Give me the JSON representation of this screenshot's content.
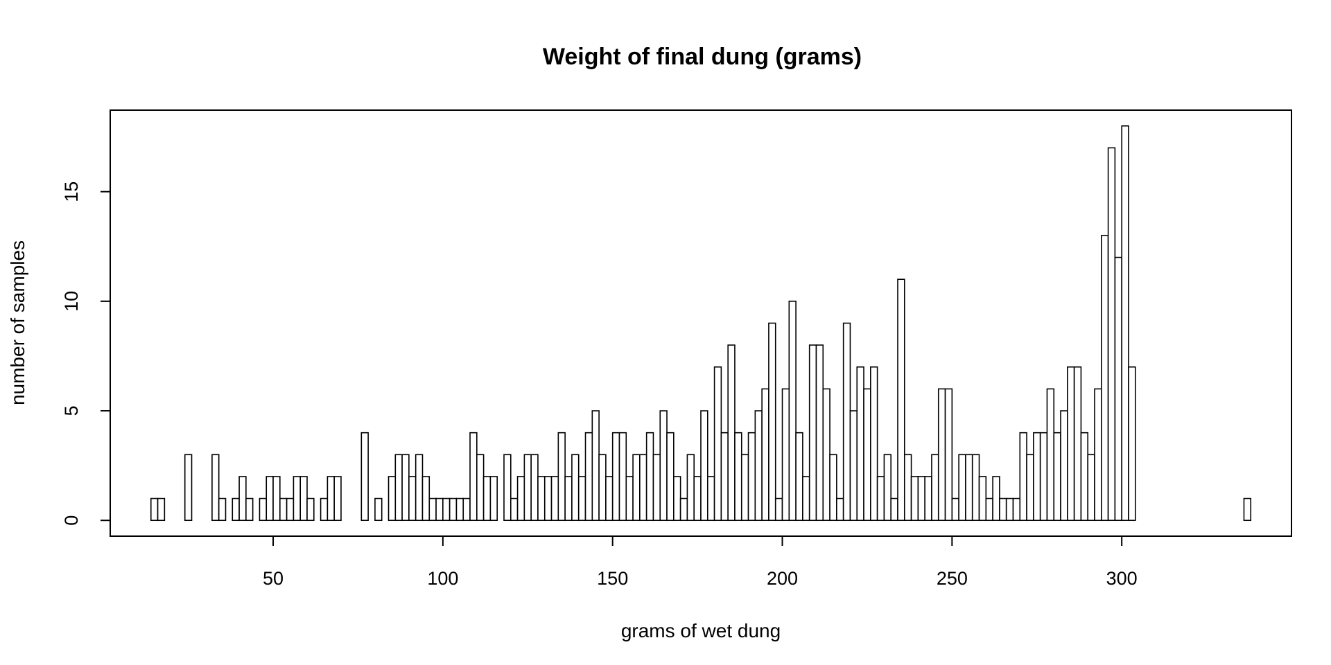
{
  "chart_data": {
    "type": "bar",
    "title": "Weight of final dung (grams)",
    "xlabel": "grams of wet dung",
    "ylabel": "number of samples",
    "bin_start": 14,
    "bin_width": 2,
    "values": [
      1,
      1,
      0,
      0,
      0,
      3,
      0,
      0,
      0,
      3,
      1,
      0,
      1,
      2,
      1,
      0,
      1,
      2,
      2,
      1,
      1,
      2,
      2,
      1,
      0,
      1,
      2,
      2,
      0,
      0,
      0,
      4,
      0,
      1,
      0,
      2,
      3,
      3,
      2,
      3,
      2,
      1,
      1,
      1,
      1,
      1,
      1,
      4,
      3,
      2,
      2,
      0,
      3,
      1,
      2,
      3,
      3,
      2,
      2,
      2,
      4,
      2,
      3,
      2,
      4,
      5,
      3,
      2,
      4,
      4,
      2,
      3,
      3,
      4,
      3,
      5,
      4,
      2,
      1,
      3,
      2,
      5,
      2,
      7,
      4,
      8,
      4,
      3,
      4,
      5,
      6,
      9,
      1,
      6,
      10,
      4,
      2,
      8,
      8,
      6,
      3,
      1,
      9,
      5,
      7,
      6,
      7,
      2,
      3,
      1,
      11,
      3,
      2,
      2,
      2,
      3,
      6,
      6,
      1,
      3,
      3,
      3,
      2,
      1,
      2,
      1,
      1,
      1,
      4,
      3,
      4,
      4,
      6,
      4,
      5,
      7,
      7,
      4,
      3,
      6,
      13,
      17,
      12,
      18,
      7,
      0,
      0,
      0,
      0,
      0,
      0,
      0,
      0,
      0,
      0,
      0,
      0,
      0,
      0,
      0,
      0,
      1
    ],
    "xticks": [
      50,
      100,
      150,
      200,
      250,
      300
    ],
    "yticks": [
      0,
      5,
      10,
      15
    ],
    "xlim": [
      2,
      350
    ],
    "ylim": [
      -0.72,
      18.72
    ],
    "grid": false,
    "legend": "none",
    "bar_fill": "#ffffff",
    "bar_stroke": "#000000"
  }
}
